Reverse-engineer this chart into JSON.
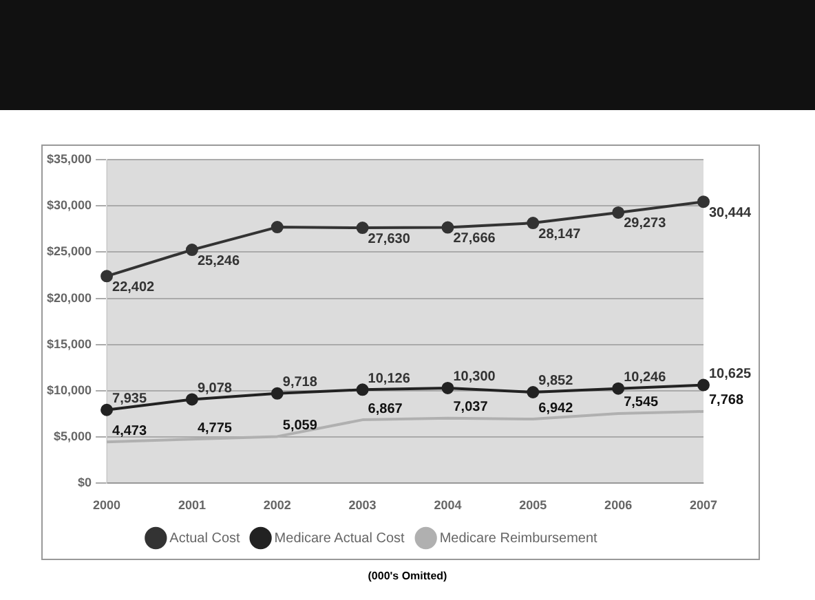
{
  "chart_data": {
    "type": "line",
    "categories": [
      "2000",
      "2001",
      "2002",
      "2003",
      "2004",
      "2005",
      "2006",
      "2007"
    ],
    "series": [
      {
        "name": "Actual Cost",
        "color": "#333333",
        "values": [
          22402,
          25246,
          27700,
          27630,
          27666,
          28147,
          29273,
          30444
        ],
        "value_labels": [
          "22,402",
          "25,246",
          null,
          "27,630",
          "27,666",
          "28,147",
          "29,273",
          "30,444"
        ]
      },
      {
        "name": "Medicare Actual Cost",
        "color": "#222222",
        "values": [
          7935,
          9078,
          9718,
          10126,
          10300,
          9852,
          10246,
          10625
        ],
        "value_labels": [
          "7,935",
          "9,078",
          "9,718",
          "10,126",
          "10,300",
          "9,852",
          "10,246",
          "10,625"
        ]
      },
      {
        "name": "Medicare Reimbursement",
        "color": "#b0b0b0",
        "marker": "none",
        "values": [
          4473,
          4775,
          5059,
          6867,
          7037,
          6942,
          7545,
          7768
        ],
        "value_labels": [
          "4,473",
          "4,775",
          "5,059",
          "6,867",
          "7,037",
          "6,942",
          "7,545",
          "7,768"
        ]
      }
    ],
    "ylim": [
      0,
      35000
    ],
    "yticks": [
      {
        "value": 0,
        "label": "$0"
      },
      {
        "value": 5000,
        "label": "$5,000"
      },
      {
        "value": 10000,
        "label": "$10,000"
      },
      {
        "value": 15000,
        "label": "$15,000"
      },
      {
        "value": 20000,
        "label": "$20,000"
      },
      {
        "value": 25000,
        "label": "$25,000"
      },
      {
        "value": 30000,
        "label": "$30,000"
      },
      {
        "value": 35000,
        "label": "$35,000"
      }
    ],
    "grid": "y",
    "legend": "bottom",
    "marker": "circle",
    "annotations": [
      "(000's Omitted)"
    ]
  }
}
